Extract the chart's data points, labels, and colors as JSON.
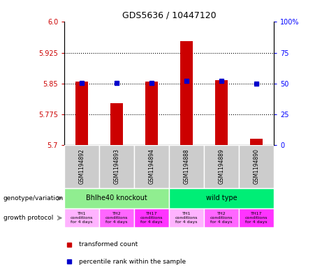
{
  "title": "GDS5636 / 10447120",
  "samples": [
    "GSM1194892",
    "GSM1194893",
    "GSM1194894",
    "GSM1194888",
    "GSM1194889",
    "GSM1194890"
  ],
  "red_values": [
    5.855,
    5.803,
    5.855,
    5.953,
    5.858,
    5.716
  ],
  "blue_values": [
    5.852,
    5.852,
    5.852,
    5.856,
    5.856,
    5.85
  ],
  "ymin": 5.7,
  "ymax": 6.0,
  "yticks_left": [
    5.7,
    5.775,
    5.85,
    5.925,
    6.0
  ],
  "yticks_right": [
    0,
    25,
    50,
    75,
    100
  ],
  "yticks_right_labels": [
    "0",
    "25",
    "50",
    "75",
    "100%"
  ],
  "genotype_groups": [
    {
      "label": "Bhlhe40 knockout",
      "start": 0,
      "end": 3,
      "color": "#90EE90"
    },
    {
      "label": "wild type",
      "start": 3,
      "end": 6,
      "color": "#00EE76"
    }
  ],
  "protocol_colors": [
    "#FFB3FF",
    "#FF66FF",
    "#FF33FF",
    "#FFB3FF",
    "#FF66FF",
    "#FF33FF"
  ],
  "protocol_labels": [
    "TH1\nconditions\nfor 4 days",
    "TH2\nconditions\nfor 4 days",
    "TH17\nconditions\nfor 4 days",
    "TH1\nconditions\nfor 4 days",
    "TH2\nconditions\nfor 4 days",
    "TH17\nconditions\nfor 4 days"
  ],
  "bar_color": "#CC0000",
  "dot_color": "#0000CC",
  "sample_bg_color": "#CCCCCC",
  "legend_red_label": "transformed count",
  "legend_blue_label": "percentile rank within the sample",
  "genotype_label": "genotype/variation",
  "protocol_label": "growth protocol"
}
